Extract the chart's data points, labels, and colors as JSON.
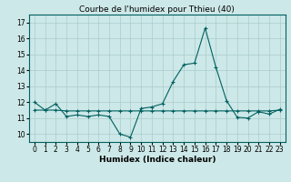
{
  "title": "Courbe de l'humidex pour Tthieu (40)",
  "xlabel": "Humidex (Indice chaleur)",
  "ylabel": "",
  "bg_color": "#cde8e8",
  "line_color": "#006060",
  "grid_color": "#aacccc",
  "series1_x": [
    0,
    1,
    2,
    3,
    4,
    5,
    6,
    7,
    8,
    9,
    10,
    11,
    12,
    13,
    14,
    15,
    16,
    17,
    18,
    19,
    20,
    21,
    22,
    23
  ],
  "series1_y": [
    12.0,
    11.5,
    11.9,
    11.1,
    11.2,
    11.1,
    11.2,
    11.1,
    10.0,
    9.8,
    11.6,
    11.7,
    11.9,
    13.3,
    14.35,
    14.45,
    16.65,
    14.2,
    12.1,
    11.05,
    11.0,
    11.4,
    11.25,
    11.55
  ],
  "series2_x": [
    0,
    1,
    2,
    3,
    4,
    5,
    6,
    7,
    8,
    9,
    10,
    11,
    12,
    13,
    14,
    15,
    16,
    17,
    18,
    19,
    20,
    21,
    22,
    23
  ],
  "series2_y": [
    11.5,
    11.5,
    11.5,
    11.45,
    11.45,
    11.45,
    11.45,
    11.45,
    11.45,
    11.45,
    11.45,
    11.45,
    11.45,
    11.45,
    11.45,
    11.45,
    11.45,
    11.45,
    11.45,
    11.45,
    11.45,
    11.45,
    11.45,
    11.5
  ],
  "ylim": [
    9.5,
    17.5
  ],
  "xlim": [
    -0.5,
    23.5
  ],
  "yticks": [
    10,
    11,
    12,
    13,
    14,
    15,
    16,
    17
  ],
  "xticks": [
    0,
    1,
    2,
    3,
    4,
    5,
    6,
    7,
    8,
    9,
    10,
    11,
    12,
    13,
    14,
    15,
    16,
    17,
    18,
    19,
    20,
    21,
    22,
    23
  ],
  "title_fontsize": 6.5,
  "label_fontsize": 6.5,
  "tick_fontsize": 5.5
}
